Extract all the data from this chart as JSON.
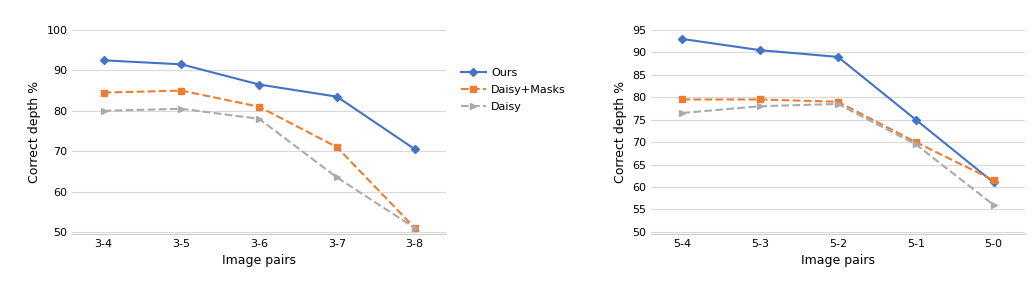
{
  "left": {
    "x_labels": [
      "3-4",
      "3-5",
      "3-6",
      "3-7",
      "3-8"
    ],
    "ours": [
      92.5,
      91.5,
      86.5,
      83.5,
      70.5
    ],
    "daisy_masks": [
      84.5,
      85.0,
      81.0,
      71.0,
      51.0
    ],
    "daisy": [
      80.0,
      80.5,
      78.0,
      63.5,
      51.0
    ],
    "ylim": [
      50,
      100
    ],
    "yticks": [
      50,
      60,
      70,
      80,
      90,
      100
    ],
    "ylabel": "Correct depth %",
    "xlabel": "Image pairs",
    "legend_labels": [
      "Ours",
      "Daisy+Masks",
      "Daisy"
    ]
  },
  "right": {
    "x_labels": [
      "5-4",
      "5-3",
      "5-2",
      "5-1",
      "5-0"
    ],
    "ours": [
      93.0,
      90.5,
      89.0,
      75.0,
      61.0
    ],
    "daisy_masks": [
      79.5,
      79.5,
      79.0,
      70.0,
      61.5
    ],
    "daisy": [
      76.5,
      78.0,
      78.5,
      69.5,
      56.0
    ],
    "ylim": [
      50,
      95
    ],
    "yticks": [
      50,
      55,
      60,
      65,
      70,
      75,
      80,
      85,
      90,
      95
    ],
    "ylabel": "Correct depth %",
    "xlabel": "Image pairs",
    "legend_labels": [
      "Ours",
      "Daisy+Mask",
      "Daisy"
    ]
  },
  "ours_color": "#4472C4",
  "daisy_masks_color": "#ED7D31",
  "daisy_color": "#AAAAAA",
  "line_width": 1.5,
  "marker_size": 4,
  "bg_color": "#FFFFFF",
  "grid_color": "#D9D9D9",
  "spine_color": "#CCCCCC"
}
